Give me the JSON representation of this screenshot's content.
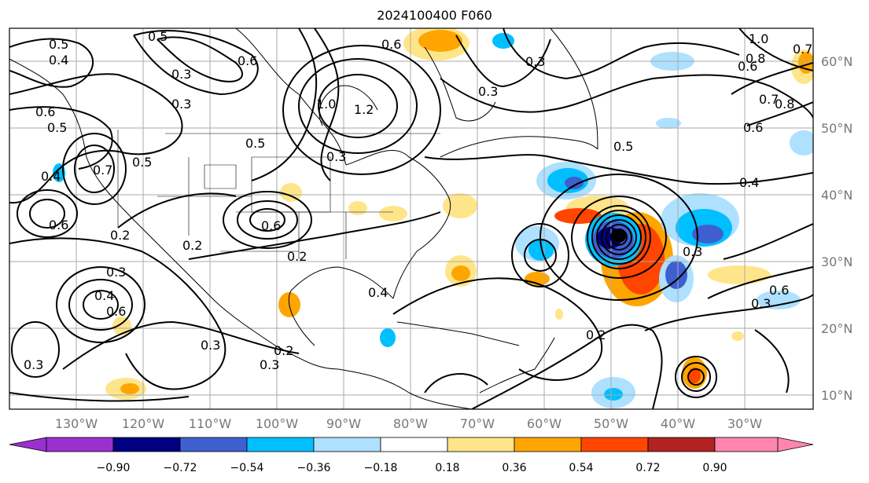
{
  "title": "2024100400 F060",
  "map": {
    "lon_ticks": [
      "130°W",
      "120°W",
      "110°W",
      "100°W",
      "90°W",
      "80°W",
      "70°W",
      "60°W",
      "50°W",
      "40°W",
      "30°W"
    ],
    "lat_ticks": [
      "60°N",
      "50°N",
      "40°N",
      "30°N",
      "20°N",
      "10°N"
    ],
    "contour_labels": [
      "0.5",
      "0.4",
      "0.6",
      "0.5",
      "0.3",
      "0.6",
      "0.4",
      "0.3",
      "0.6",
      "0.5",
      "0.7",
      "0.5",
      "0.4",
      "0.6",
      "0.2",
      "0.3",
      "0.2",
      "0.5",
      "0.3",
      "0.2",
      "0.3",
      "0.3",
      "0.2",
      "0.4",
      "0.6",
      "0.3",
      "1.0",
      "1.2",
      "0.6",
      "0.3",
      "0.3",
      "0.5",
      "0.4",
      "0.2",
      "0.3",
      "1.0",
      "0.8",
      "0.7",
      "0.6",
      "0.8",
      "0.7",
      "0.6",
      "0.3",
      "0.6"
    ],
    "grid": true
  },
  "colorbar": {
    "ticks": [
      "−0.90",
      "−0.72",
      "−0.54",
      "−0.36",
      "−0.18",
      "0.18",
      "0.36",
      "0.54",
      "0.72",
      "0.90"
    ],
    "colors": [
      "#9b30d0",
      "#000080",
      "#3e5fcf",
      "#00bfff",
      "#aee0ff",
      "#ffffff",
      "#ffe58a",
      "#ffa500",
      "#ff4500",
      "#b22222",
      "#ff85b0"
    ]
  }
}
